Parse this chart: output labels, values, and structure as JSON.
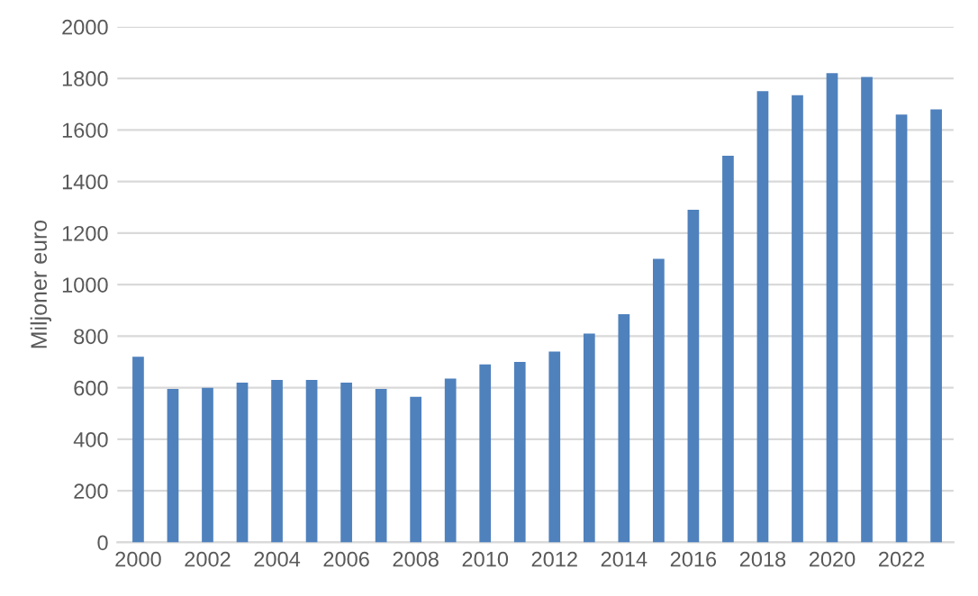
{
  "chart_data": {
    "type": "bar",
    "ylabel": "Miljoner euro",
    "categories": [
      "2000",
      null,
      "2002",
      null,
      "2004",
      null,
      "2006",
      null,
      "2008",
      null,
      "2010",
      null,
      "2012",
      null,
      "2014",
      null,
      "2016",
      null,
      "2018",
      null,
      "2020",
      null,
      "2022",
      null
    ],
    "values": [
      720,
      595,
      600,
      620,
      630,
      630,
      620,
      595,
      565,
      635,
      690,
      700,
      740,
      810,
      885,
      1100,
      1290,
      1500,
      1750,
      1735,
      1820,
      1805,
      1660,
      1680
    ],
    "color": "#4f81bd",
    "ylim": [
      0,
      2000
    ],
    "yticks": [
      0,
      200,
      400,
      600,
      800,
      1000,
      1200,
      1400,
      1600,
      1800,
      2000
    ],
    "grid": "y",
    "legend": false
  }
}
